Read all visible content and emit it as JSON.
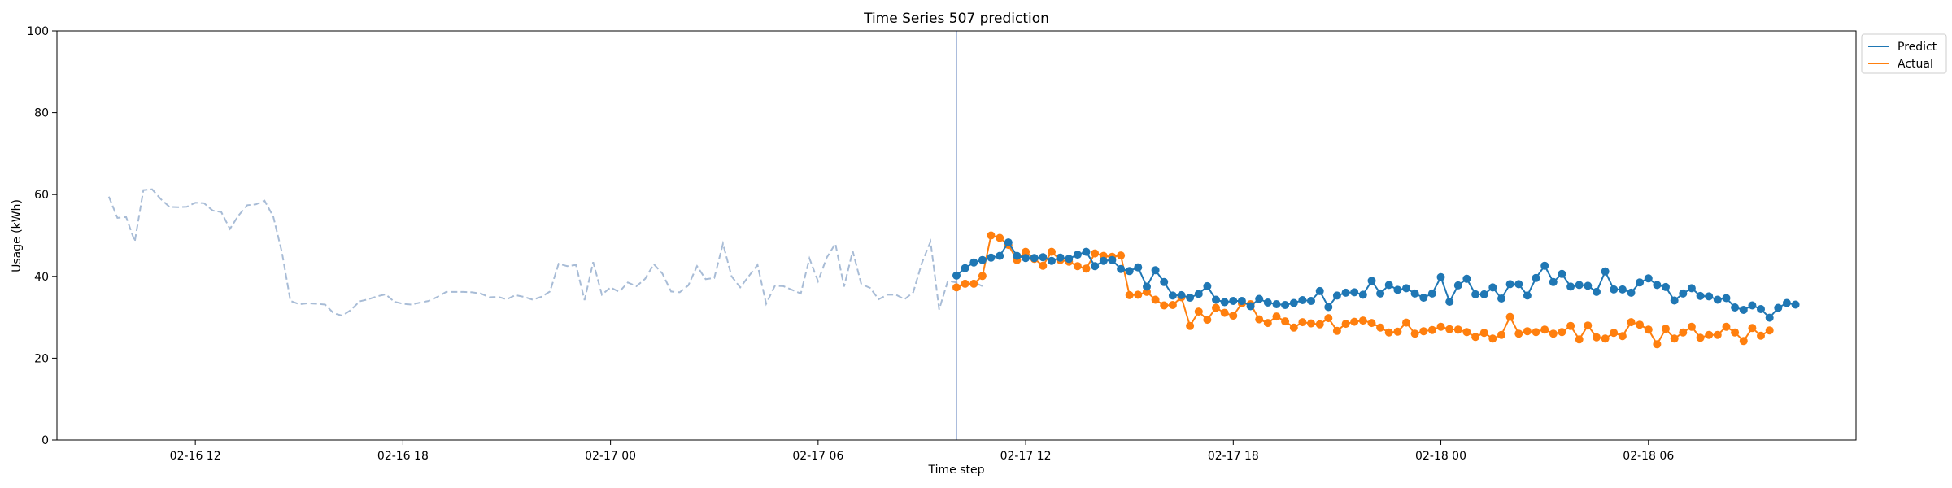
{
  "chart_data": {
    "type": "line",
    "title": "Time Series 507 prediction",
    "xlabel": "Time step",
    "ylabel": "Usage (kWh)",
    "ylim": [
      0,
      100
    ],
    "yticks": [
      0,
      20,
      40,
      60,
      80,
      100
    ],
    "xlim": [
      "2026-02-16T08:00",
      "2026-02-18T12:00"
    ],
    "xticks": [
      {
        "value": "2026-02-16T12:00",
        "label": "02-16 12"
      },
      {
        "value": "2026-02-16T18:00",
        "label": "02-16 18"
      },
      {
        "value": "2026-02-17T00:00",
        "label": "02-17 00"
      },
      {
        "value": "2026-02-17T06:00",
        "label": "02-17 06"
      },
      {
        "value": "2026-02-17T12:00",
        "label": "02-17 12"
      },
      {
        "value": "2026-02-17T18:00",
        "label": "02-17 18"
      },
      {
        "value": "2026-02-18T00:00",
        "label": "02-18 00"
      },
      {
        "value": "2026-02-18T06:00",
        "label": "02-18 06"
      }
    ],
    "interval_minutes": 15,
    "history": {
      "start": "2026-02-16T09:30",
      "line_style": "dashed",
      "color": "#a8bcd6",
      "values": [
        59.5,
        54.3,
        54.5,
        48.5,
        61.1,
        61.3,
        58.9,
        57.0,
        56.9,
        57.0,
        58.0,
        57.9,
        56.1,
        55.7,
        51.6,
        54.9,
        57.4,
        57.6,
        58.5,
        54.7,
        46.0,
        34.0,
        33.2,
        33.4,
        33.3,
        33.1,
        31.0,
        30.4,
        31.8,
        33.9,
        34.4,
        35.1,
        35.6,
        33.8,
        33.3,
        33.1,
        33.6,
        34.0,
        35.0,
        36.2,
        36.2,
        36.2,
        36.1,
        35.8,
        34.9,
        35.0,
        34.4,
        35.4,
        35.0,
        34.3,
        35.0,
        36.3,
        43.1,
        42.5,
        42.8,
        34.2,
        43.5,
        35.5,
        37.3,
        36.2,
        38.5,
        37.6,
        39.4,
        43.0,
        40.7,
        36.3,
        36.1,
        37.8,
        42.5,
        39.3,
        39.6,
        48.0,
        40.0,
        37.3,
        40.1,
        42.8,
        33.3,
        37.7,
        37.6,
        36.7,
        35.8,
        44.4,
        38.8,
        44.6,
        48.0,
        37.5,
        46.2,
        38.1,
        37.2,
        34.4,
        35.5,
        35.5,
        34.4,
        36.1,
        43.3,
        48.5,
        31.9,
        38.9,
        38.5,
        37.4,
        38.6,
        37.6
      ]
    },
    "forecast_start_marker": "2026-02-17T10:00",
    "forecast_start": "2026-02-17T10:00",
    "series": [
      {
        "name": "Predict",
        "color": "#1f77b4",
        "values": [
          40.2,
          42.0,
          43.4,
          44.0,
          44.6,
          45.0,
          48.3,
          45.0,
          44.5,
          44.5,
          44.7,
          43.8,
          44.6,
          44.3,
          45.3,
          46.0,
          42.5,
          43.8,
          44.0,
          41.8,
          41.3,
          42.2,
          37.5,
          41.5,
          38.6,
          35.3,
          35.4,
          34.8,
          35.7,
          37.6,
          34.3,
          33.7,
          34.0,
          34.0,
          32.7,
          34.5,
          33.6,
          33.2,
          33.0,
          33.5,
          34.2,
          34.0,
          36.4,
          32.5,
          35.3,
          36.0,
          36.1,
          35.5,
          38.9,
          35.8,
          37.9,
          36.7,
          37.1,
          35.8,
          34.8,
          35.8,
          39.8,
          33.8,
          37.8,
          39.4,
          35.6,
          35.6,
          37.3,
          34.6,
          38.1,
          38.1,
          35.3,
          39.6,
          42.6,
          38.6,
          40.6,
          37.5,
          37.9,
          37.7,
          36.2,
          41.2,
          36.8,
          36.8,
          36.0,
          38.5,
          39.5,
          37.9,
          37.4,
          34.1,
          35.8,
          37.1,
          35.2,
          35.1,
          34.3,
          34.7,
          32.4,
          31.8,
          32.9,
          32.0,
          29.9,
          32.3,
          33.5,
          33.1
        ]
      },
      {
        "name": "Actual",
        "color": "#ff7f0e",
        "values": [
          37.3,
          38.2,
          38.2,
          40.1,
          50.0,
          49.4,
          47.7,
          44.0,
          46.0,
          44.3,
          42.6,
          46.0,
          44.0,
          43.6,
          42.5,
          41.9,
          45.6,
          45.0,
          44.8,
          45.1,
          35.4,
          35.5,
          36.2,
          34.3,
          32.9,
          33.0,
          34.9,
          27.9,
          31.4,
          29.4,
          32.3,
          31.1,
          30.4,
          33.4,
          33.2,
          29.5,
          28.6,
          30.2,
          29.0,
          27.5,
          28.8,
          28.5,
          28.3,
          29.8,
          26.7,
          28.4,
          28.9,
          29.2,
          28.6,
          27.5,
          26.3,
          26.5,
          28.7,
          26.0,
          26.6,
          26.9,
          27.7,
          27.1,
          27.0,
          26.4,
          25.2,
          26.2,
          24.8,
          25.7,
          30.1,
          26.0,
          26.6,
          26.4,
          27.0,
          26.0,
          26.4,
          27.9,
          24.6,
          28.0,
          25.1,
          24.8,
          26.2,
          25.4,
          28.8,
          28.2,
          27.0,
          23.4,
          27.2,
          24.8,
          26.3,
          27.7,
          25.0,
          25.7,
          25.7,
          27.7,
          26.3,
          24.2,
          27.4,
          25.5,
          26.8
        ]
      }
    ],
    "grid": false,
    "legend": "top-right outside plot",
    "legend_entries": [
      "Predict",
      "Actual"
    ]
  }
}
